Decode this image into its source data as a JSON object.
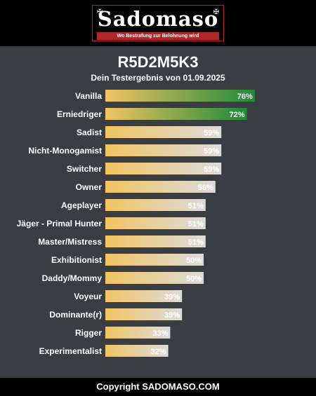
{
  "header": {
    "logo_text": "Sadomaso",
    "logo_tagline": "Wo Bestrafung zur Belohnung wird"
  },
  "title": "R5D2M5K3",
  "subtitle": "Dein Testergebnis von 01.09.2025",
  "footer": "Copyright SADOMASO.COM",
  "colors": {
    "bar_start": "#f2c462",
    "bar_end_neutral": "#dcdcdc",
    "bar_end_top": "#1f8a3a",
    "background": "#3a3d42",
    "header_bg": "#000000",
    "accent_red": "#b1262b"
  },
  "chart_data": {
    "type": "bar",
    "orientation": "horizontal",
    "categories": [
      "Vanilla",
      "Erniedriger",
      "Sadist",
      "Nicht-Monogamist",
      "Switcher",
      "Owner",
      "Ageplayer",
      "Jäger - Primal Hunter",
      "Master/Mistress",
      "Exhibitionist",
      "Daddy/Mommy",
      "Voyeur",
      "Dominante(r)",
      "Rigger",
      "Experimentalist"
    ],
    "values": [
      76,
      72,
      59,
      59,
      59,
      56,
      51,
      51,
      51,
      50,
      50,
      39,
      39,
      33,
      32
    ],
    "value_labels": [
      "76%",
      "72%",
      "59%",
      "59%",
      "59%",
      "56%",
      "51%",
      "51%",
      "51%",
      "50%",
      "50%",
      "39%",
      "39%",
      "33%",
      "32%"
    ],
    "highlighted": [
      true,
      true,
      false,
      false,
      false,
      false,
      false,
      false,
      false,
      false,
      false,
      false,
      false,
      false,
      false
    ],
    "xlim": [
      0,
      100
    ],
    "grid": false,
    "legend": "none"
  }
}
